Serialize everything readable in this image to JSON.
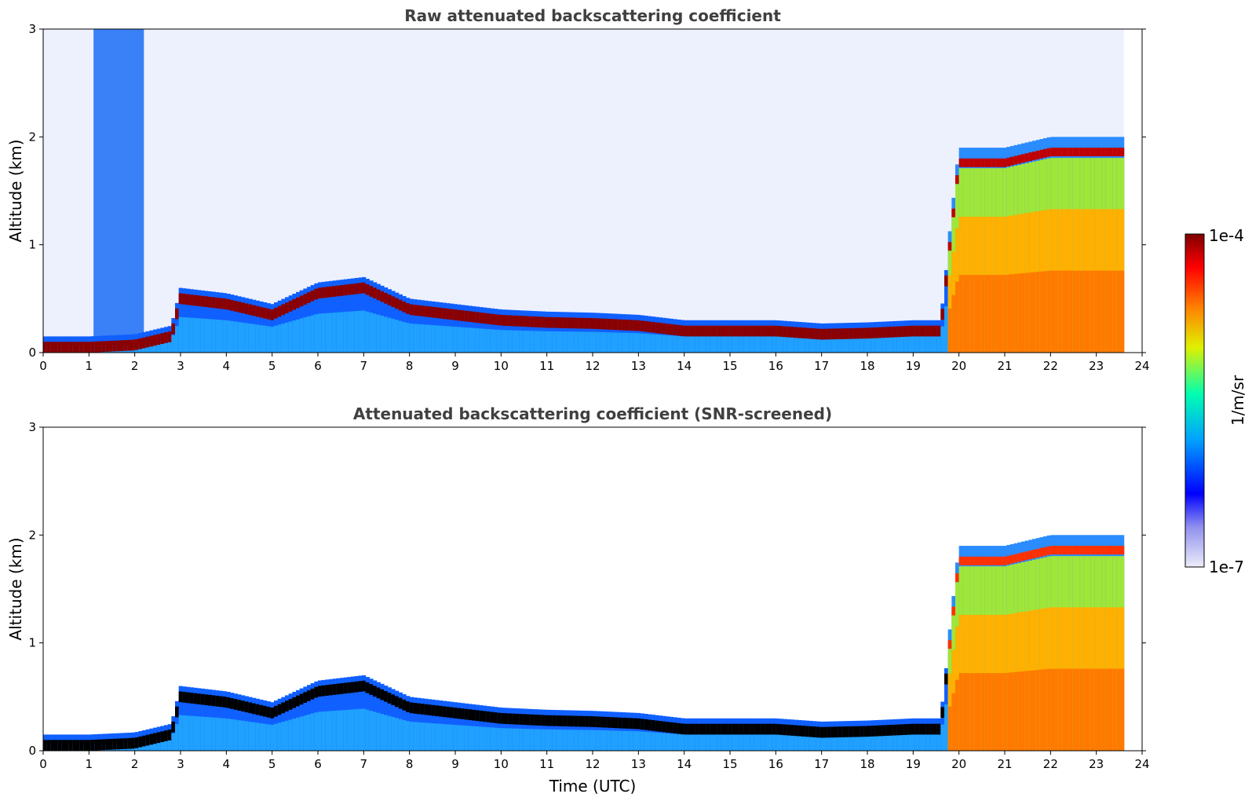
{
  "chart_data": [
    {
      "type": "heatmap",
      "title": "Raw attenuated backscattering coefficient",
      "xlabel": "",
      "ylabel": "Altitude (km)",
      "xlim": [
        0,
        24
      ],
      "ylim": [
        0,
        3
      ],
      "xticks": [
        "0",
        "1",
        "2",
        "3",
        "4",
        "5",
        "6",
        "7",
        "8",
        "9",
        "10",
        "11",
        "12",
        "13",
        "14",
        "15",
        "16",
        "17",
        "18",
        "19",
        "20",
        "21",
        "22",
        "23",
        "24"
      ],
      "yticks": [
        "0",
        "1",
        "2",
        "3"
      ],
      "layer_height_km": [
        [
          0,
          0.1
        ],
        [
          1,
          0.1
        ],
        [
          2,
          0.12
        ],
        [
          2.8,
          0.2
        ],
        [
          3,
          0.55
        ],
        [
          4,
          0.5
        ],
        [
          5,
          0.4
        ],
        [
          6,
          0.6
        ],
        [
          7,
          0.65
        ],
        [
          8,
          0.45
        ],
        [
          9,
          0.4
        ],
        [
          10,
          0.35
        ],
        [
          11,
          0.33
        ],
        [
          12,
          0.32
        ],
        [
          13,
          0.3
        ],
        [
          14,
          0.25
        ],
        [
          15,
          0.25
        ],
        [
          16,
          0.25
        ],
        [
          17,
          0.22
        ],
        [
          18,
          0.23
        ],
        [
          19,
          0.25
        ],
        [
          19.6,
          0.25
        ],
        [
          20,
          1.8
        ],
        [
          21,
          1.8
        ],
        [
          22,
          1.9
        ],
        [
          23,
          1.9
        ],
        [
          23.6,
          1.9
        ]
      ],
      "data_end_utc": 23.6
    },
    {
      "type": "heatmap",
      "title": "Attenuated backscattering coefficient (SNR-screened)",
      "xlabel": "Time (UTC)",
      "ylabel": "Altitude (km)",
      "xlim": [
        0,
        24
      ],
      "ylim": [
        0,
        3
      ],
      "xticks": [
        "0",
        "1",
        "2",
        "3",
        "4",
        "5",
        "6",
        "7",
        "8",
        "9",
        "10",
        "11",
        "12",
        "13",
        "14",
        "15",
        "16",
        "17",
        "18",
        "19",
        "20",
        "21",
        "22",
        "23",
        "24"
      ],
      "yticks": [
        "0",
        "1",
        "2",
        "3"
      ],
      "layer_height_km": [
        [
          0,
          0.1
        ],
        [
          1,
          0.1
        ],
        [
          2,
          0.12
        ],
        [
          2.8,
          0.2
        ],
        [
          3,
          0.55
        ],
        [
          4,
          0.5
        ],
        [
          5,
          0.4
        ],
        [
          6,
          0.6
        ],
        [
          7,
          0.65
        ],
        [
          8,
          0.45
        ],
        [
          9,
          0.4
        ],
        [
          10,
          0.35
        ],
        [
          11,
          0.33
        ],
        [
          12,
          0.32
        ],
        [
          13,
          0.3
        ],
        [
          14,
          0.25
        ],
        [
          15,
          0.25
        ],
        [
          16,
          0.25
        ],
        [
          17,
          0.22
        ],
        [
          18,
          0.23
        ],
        [
          19,
          0.25
        ],
        [
          19.6,
          0.25
        ],
        [
          20,
          1.8
        ],
        [
          21,
          1.8
        ],
        [
          22,
          1.9
        ],
        [
          23,
          1.9
        ],
        [
          23.6,
          1.9
        ]
      ],
      "data_end_utc": 23.6
    }
  ],
  "colorbar": {
    "label": "1/m/sr",
    "max_label": "1e-4",
    "min_label": "1e-7",
    "scale": "log",
    "colormap": [
      "#e8e8f8",
      "#0000ff",
      "#00c0ff",
      "#00ffb0",
      "#f0f000",
      "#ff7000",
      "#ff0000",
      "#800000"
    ]
  }
}
